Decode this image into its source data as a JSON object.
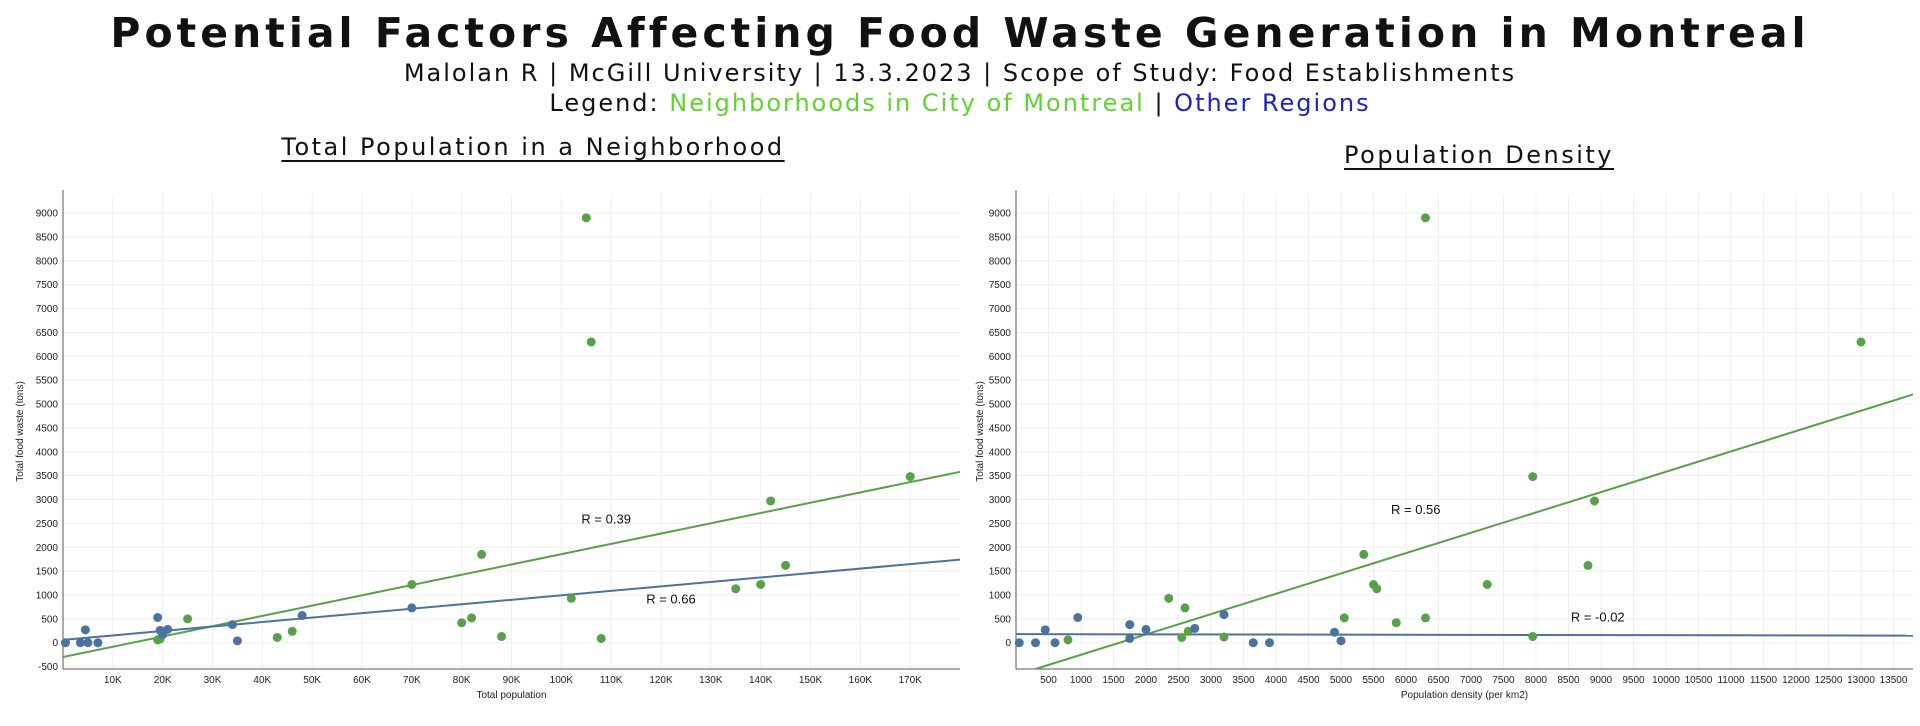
{
  "header": {
    "title": "Potential Factors Affecting Food Waste Generation in Montreal",
    "subtitle": "Malolan R | McGill University | 13.3.2023 | Scope of Study: Food Establishments",
    "legend_prefix": "Legend: ",
    "legend_green": "Neighborhoods in City of Montreal",
    "legend_sep": " | ",
    "legend_blue": "Other Regions"
  },
  "colors": {
    "green": "#58a04a",
    "blue": "#4a73a0"
  },
  "chart_data": [
    {
      "type": "scatter",
      "title": "Total Population in a Neighborhood",
      "xlabel": "Total population",
      "ylabel": "Total food waste (tons)",
      "xlim": [
        0,
        180000
      ],
      "ylim": [
        -550,
        9400
      ],
      "grid": true,
      "xticks": [
        10000,
        20000,
        30000,
        40000,
        50000,
        60000,
        70000,
        80000,
        90000,
        100000,
        110000,
        120000,
        130000,
        140000,
        150000,
        160000,
        170000
      ],
      "xtick_labels": [
        "10K",
        "20K",
        "30K",
        "40K",
        "50K",
        "60K",
        "70K",
        "80K",
        "90K",
        "100K",
        "110K",
        "120K",
        "130K",
        "140K",
        "150K",
        "160K",
        "170K"
      ],
      "yticks": [
        -500,
        0,
        500,
        1000,
        1500,
        2000,
        2500,
        3000,
        3500,
        4000,
        4500,
        5000,
        5500,
        6000,
        6500,
        7000,
        7500,
        8000,
        8500,
        9000
      ],
      "ytick_labels": [
        "-500",
        "0",
        "500",
        "1000",
        "1500",
        "2000",
        "2500",
        "3000",
        "3500",
        "4000",
        "4500",
        "5000",
        "5500",
        "6000",
        "6500",
        "7000",
        "7500",
        "8000",
        "8500",
        "9000"
      ],
      "series": [
        {
          "color": "green",
          "points": [
            [
              105000,
              8900
            ],
            [
              106000,
              6300
            ],
            [
              170000,
              3480
            ],
            [
              142000,
              2970
            ],
            [
              145000,
              1620
            ],
            [
              84000,
              1850
            ],
            [
              70000,
              1220
            ],
            [
              140000,
              1220
            ],
            [
              135000,
              1130
            ],
            [
              102000,
              930
            ],
            [
              82000,
              520
            ],
            [
              80000,
              420
            ],
            [
              25000,
              500
            ],
            [
              46000,
              240
            ],
            [
              43000,
              110
            ],
            [
              88000,
              130
            ],
            [
              108000,
              90
            ],
            [
              19000,
              60
            ],
            [
              19500,
              80
            ]
          ],
          "trendline": [
            [
              0,
              -300
            ],
            [
              180000,
              3580
            ]
          ],
          "annotation": {
            "text": "R = 0.39",
            "x": 109000,
            "y": 2500
          }
        },
        {
          "color": "blue",
          "points": [
            [
              500,
              0
            ],
            [
              3500,
              0
            ],
            [
              4500,
              270
            ],
            [
              5000,
              0
            ],
            [
              7000,
              0
            ],
            [
              19000,
              530
            ],
            [
              19500,
              260
            ],
            [
              21000,
              280
            ],
            [
              20000,
              170
            ],
            [
              34000,
              380
            ],
            [
              35000,
              40
            ],
            [
              48000,
              570
            ],
            [
              70000,
              730
            ]
          ],
          "trendline": [
            [
              0,
              60
            ],
            [
              180000,
              1740
            ]
          ],
          "annotation": {
            "text": "R = 0.66",
            "x": 122000,
            "y": 820
          }
        }
      ]
    },
    {
      "type": "scatter",
      "title": "Population Density",
      "xlabel": "Population density (per km2)",
      "ylabel": "Total food waste (tons)",
      "xlim": [
        0,
        13800
      ],
      "ylim": [
        -550,
        9400
      ],
      "grid": true,
      "xticks": [
        500,
        1000,
        1500,
        2000,
        2500,
        3000,
        3500,
        4000,
        4500,
        5000,
        5500,
        6000,
        6500,
        7000,
        7500,
        8000,
        8500,
        9000,
        9500,
        10000,
        10500,
        11000,
        11500,
        12000,
        12500,
        13000,
        13500
      ],
      "xtick_labels": [
        "500",
        "1000",
        "1500",
        "2000",
        "2500",
        "3000",
        "3500",
        "4000",
        "4500",
        "5000",
        "5500",
        "6000",
        "6500",
        "7000",
        "7500",
        "8000",
        "8500",
        "9000",
        "9500",
        "10000",
        "10500",
        "11000",
        "11500",
        "12000",
        "12500",
        "13000",
        "13500"
      ],
      "yticks": [
        0,
        500,
        1000,
        1500,
        2000,
        2500,
        3000,
        3500,
        4000,
        4500,
        5000,
        5500,
        6000,
        6500,
        7000,
        7500,
        8000,
        8500,
        9000
      ],
      "ytick_labels": [
        "0",
        "500",
        "1000",
        "1500",
        "2000",
        "2500",
        "3000",
        "3500",
        "4000",
        "4500",
        "5000",
        "5500",
        "6000",
        "6500",
        "7000",
        "7500",
        "8000",
        "8500",
        "9000"
      ],
      "series": [
        {
          "color": "green",
          "points": [
            [
              6300,
              8900
            ],
            [
              13000,
              6300
            ],
            [
              7950,
              3480
            ],
            [
              8900,
              2970
            ],
            [
              8800,
              1620
            ],
            [
              5350,
              1850
            ],
            [
              5500,
              1220
            ],
            [
              5550,
              1130
            ],
            [
              7250,
              1220
            ],
            [
              2350,
              930
            ],
            [
              2600,
              730
            ],
            [
              5050,
              520
            ],
            [
              6300,
              520
            ],
            [
              5850,
              420
            ],
            [
              2650,
              240
            ],
            [
              2550,
              110
            ],
            [
              3200,
              120
            ],
            [
              7950,
              130
            ],
            [
              800,
              60
            ]
          ],
          "trendline": [
            [
              300,
              -550
            ],
            [
              13800,
              5200
            ]
          ],
          "annotation": {
            "text": "R = 0.56",
            "x": 6150,
            "y": 2700
          }
        },
        {
          "color": "blue",
          "points": [
            [
              50,
              0
            ],
            [
              300,
              0
            ],
            [
              450,
              270
            ],
            [
              600,
              0
            ],
            [
              950,
              530
            ],
            [
              1750,
              380
            ],
            [
              2000,
              280
            ],
            [
              1750,
              90
            ],
            [
              2750,
              300
            ],
            [
              3200,
              590
            ],
            [
              3650,
              0
            ],
            [
              3900,
              0
            ],
            [
              4900,
              220
            ],
            [
              5000,
              40
            ]
          ],
          "trendline": [
            [
              0,
              180
            ],
            [
              13800,
              150
            ]
          ],
          "annotation": {
            "text": "R = -0.02",
            "x": 8950,
            "y": 440
          }
        }
      ]
    }
  ]
}
